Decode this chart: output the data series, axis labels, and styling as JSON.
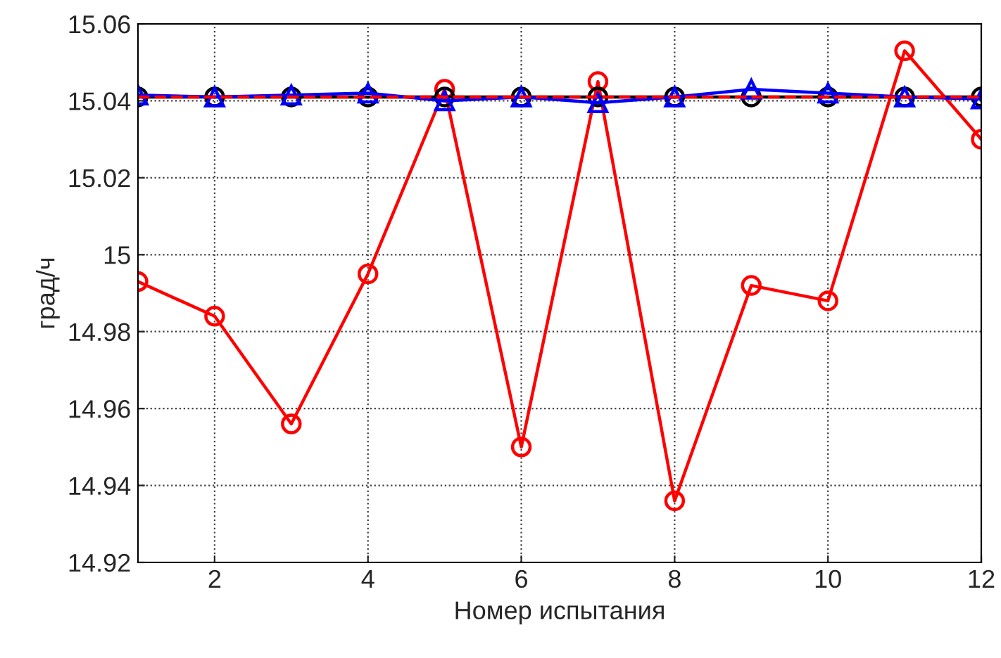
{
  "chart_data": {
    "type": "line",
    "xlabel": "Номер испытания",
    "ylabel": "град/ч",
    "x": [
      1,
      2,
      3,
      4,
      5,
      6,
      7,
      8,
      9,
      10,
      11,
      12
    ],
    "xlim": [
      1,
      12
    ],
    "xticks": [
      2,
      4,
      6,
      8,
      10,
      12
    ],
    "ylim": [
      14.92,
      15.06
    ],
    "yticks": [
      14.92,
      14.94,
      14.96,
      14.98,
      15,
      15.02,
      15.04,
      15.06
    ],
    "grid": true,
    "series": [
      {
        "color": "#ff0000",
        "marker": "circle",
        "line_style": "solid",
        "values": [
          14.993,
          14.984,
          14.956,
          14.995,
          15.043,
          14.95,
          15.045,
          14.936,
          14.992,
          14.988,
          15.053,
          15.03
        ]
      },
      {
        "color": "#000000",
        "marker": "circle",
        "line_style": "solid",
        "values": [
          15.041,
          15.041,
          15.041,
          15.041,
          15.041,
          15.041,
          15.041,
          15.041,
          15.041,
          15.041,
          15.041,
          15.041
        ]
      },
      {
        "color": "#0000ff",
        "marker": "triangle",
        "line_style": "solid",
        "values": [
          15.0415,
          15.041,
          15.0415,
          15.042,
          15.04,
          15.041,
          15.0395,
          15.041,
          15.043,
          15.042,
          15.041,
          15.0405
        ]
      },
      {
        "color": "#ff0000",
        "marker": "none",
        "line_style": "dashed",
        "values": [
          15.041,
          15.041,
          15.041,
          15.041,
          15.041,
          15.041,
          15.041,
          15.041,
          15.041,
          15.041,
          15.041,
          15.041
        ]
      }
    ]
  }
}
